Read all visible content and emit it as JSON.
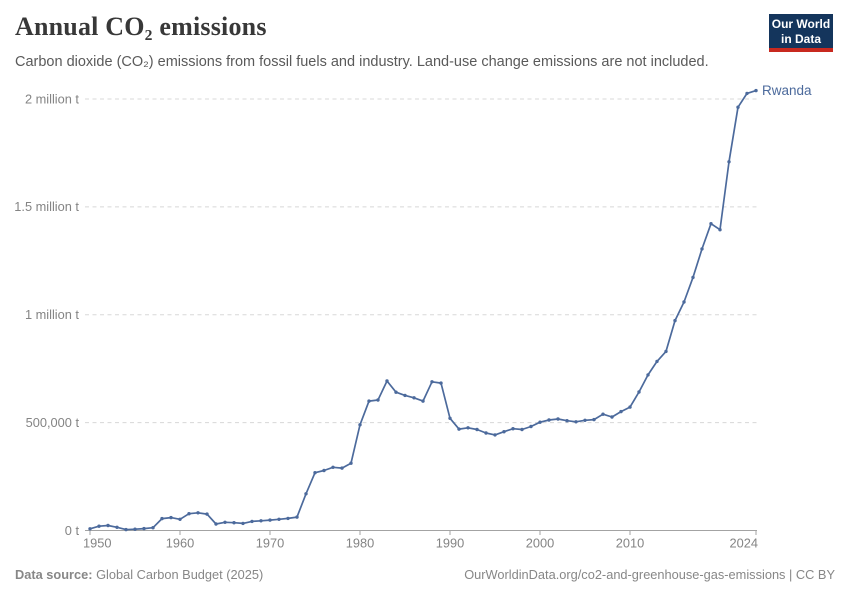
{
  "header": {
    "title": "Annual CO₂ emissions",
    "subtitle": "Carbon dioxide (CO₂) emissions from fossil fuels and industry. Land-use change emissions are not included.",
    "logo": {
      "line1": "Our World",
      "line2": "in Data"
    }
  },
  "colors": {
    "line": "#4C6A9C",
    "grid": "#d8d8d8",
    "axis": "#a3a3a3",
    "text_muted": "#848484",
    "logo_bg": "#14355C",
    "logo_accent": "#C8291F"
  },
  "chart_data": {
    "type": "line",
    "title": "Annual CO₂ emissions",
    "entity": "Rwanda",
    "unit": "tonnes of CO₂",
    "xlim": [
      1950,
      2024
    ],
    "ylim": [
      0,
      2000000
    ],
    "grid": "horizontal dashed",
    "legend_position": "end-of-line label",
    "x_ticks": [
      1950,
      1960,
      1970,
      1980,
      1990,
      2000,
      2010,
      2024
    ],
    "y_ticks": [
      {
        "value": 0,
        "label": "0 t"
      },
      {
        "value": 500000,
        "label": "500,000 t"
      },
      {
        "value": 1000000,
        "label": "1 million t"
      },
      {
        "value": 1500000,
        "label": "1.5 million t"
      },
      {
        "value": 2000000,
        "label": "2 million t"
      }
    ],
    "series": [
      {
        "name": "Rwanda",
        "color": "#4C6A9C",
        "x": [
          1950,
          1951,
          1952,
          1953,
          1954,
          1955,
          1956,
          1957,
          1958,
          1959,
          1960,
          1961,
          1962,
          1963,
          1964,
          1965,
          1966,
          1967,
          1968,
          1969,
          1970,
          1971,
          1972,
          1973,
          1974,
          1975,
          1976,
          1977,
          1978,
          1979,
          1980,
          1981,
          1982,
          1983,
          1984,
          1985,
          1986,
          1987,
          1988,
          1989,
          1990,
          1991,
          1992,
          1993,
          1994,
          1995,
          1996,
          1997,
          1998,
          1999,
          2000,
          2001,
          2002,
          2003,
          2004,
          2005,
          2006,
          2007,
          2008,
          2009,
          2010,
          2011,
          2012,
          2013,
          2014,
          2015,
          2016,
          2017,
          2018,
          2019,
          2020,
          2021,
          2022,
          2023,
          2024
        ],
        "values": [
          8000,
          20000,
          23000,
          15000,
          4000,
          6000,
          9000,
          13000,
          55000,
          60000,
          52000,
          78000,
          82000,
          76000,
          30000,
          38000,
          36000,
          33000,
          42000,
          45000,
          48000,
          52000,
          56000,
          62000,
          170000,
          268000,
          278000,
          293000,
          289000,
          312000,
          490000,
          600000,
          605000,
          693000,
          641000,
          626000,
          615000,
          600000,
          689000,
          683000,
          520000,
          470000,
          476000,
          468000,
          452000,
          443000,
          458000,
          472000,
          468000,
          482000,
          502000,
          512000,
          517000,
          509000,
          504000,
          511000,
          514000,
          539000,
          526000,
          551000,
          572000,
          642000,
          721000,
          784000,
          830000,
          973000,
          1059000,
          1173000,
          1305000,
          1422000,
          1394000,
          1709000,
          1962000,
          2026000,
          2039000
        ]
      }
    ]
  },
  "footer": {
    "source_label": "Data source:",
    "source_text": " Global Carbon Budget (2025)",
    "right_text": "OurWorldinData.org/co2-and-greenhouse-gas-emissions | CC BY"
  }
}
